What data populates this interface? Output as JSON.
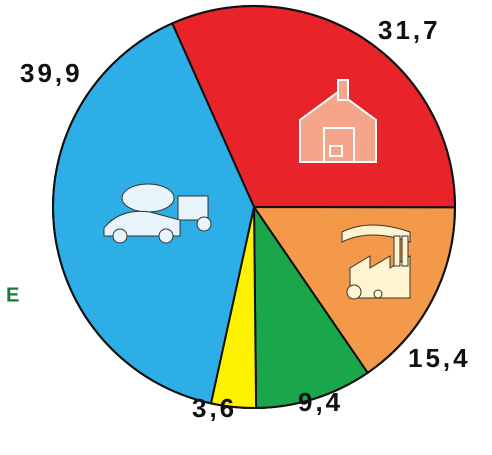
{
  "chart_data": {
    "type": "pie",
    "values": [
      31.7,
      15.4,
      9.4,
      3.6,
      39.9
    ],
    "value_labels": [
      "31,7",
      "15,4",
      "9,4",
      "3,6",
      "39,9"
    ],
    "colors": [
      "#e8232a",
      "#f4994a",
      "#1aa64a",
      "#fff200",
      "#2eaee6"
    ],
    "annotation": "E"
  }
}
